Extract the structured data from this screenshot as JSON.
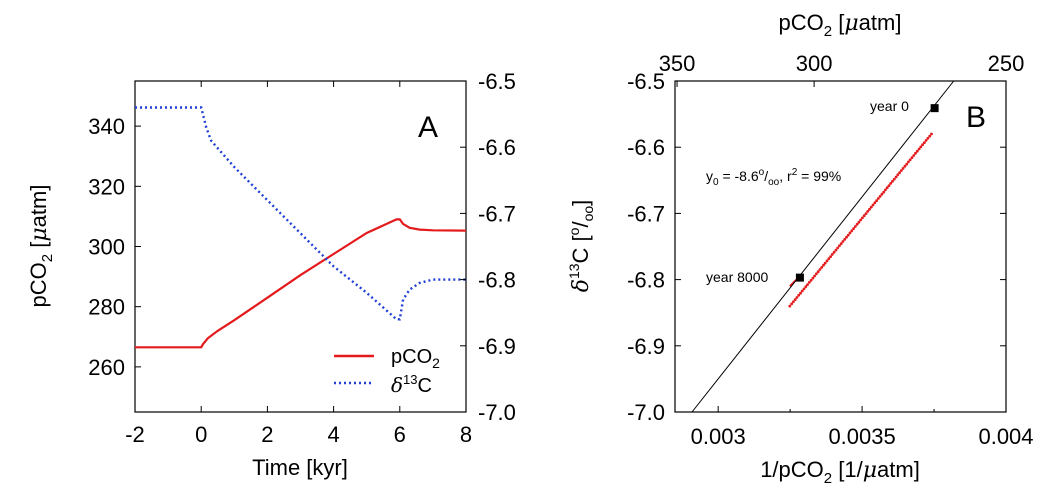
{
  "chart_data": [
    {
      "type": "line",
      "panel_label": "A",
      "xlabel": "Time [kyr]",
      "ylabel_left": "pCO2 [μatm]",
      "ylabel_right": "",
      "xlim": [
        -2,
        8
      ],
      "ylim_left": [
        245,
        355
      ],
      "ylim_right": [
        -7.0,
        -6.5
      ],
      "x_ticks": [
        "-2",
        "0",
        "2",
        "4",
        "6",
        "8"
      ],
      "y_ticks_left": [
        "260",
        "280",
        "300",
        "320",
        "340"
      ],
      "y_ticks_right": [
        "-7.0",
        "-6.9",
        "-6.8",
        "-6.7",
        "-6.6",
        "-6.5"
      ],
      "legend_position": "bottom-right",
      "series": [
        {
          "name": "pCO2",
          "axis": "left",
          "color": "#e41a1c",
          "style": "solid",
          "x": [
            -2,
            0,
            0.05,
            0.2,
            0.5,
            1,
            2,
            3,
            4,
            5,
            5.9,
            6.0,
            6.1,
            6.3,
            6.6,
            7,
            8
          ],
          "y": [
            266.5,
            266.5,
            267.5,
            269.5,
            272,
            275.5,
            283,
            290.5,
            297.5,
            304.5,
            309,
            309,
            307.5,
            306.2,
            305.6,
            305.4,
            305.3
          ]
        },
        {
          "name": "δ13C",
          "axis": "right",
          "color": "#1f3fd6",
          "style": "dotted",
          "x": [
            -2,
            0,
            0.05,
            0.15,
            0.3,
            1,
            2,
            3,
            4,
            5,
            5.9,
            6.0,
            6.1,
            6.3,
            6.6,
            7,
            8
          ],
          "y": [
            -6.54,
            -6.54,
            -6.55,
            -6.57,
            -6.59,
            -6.63,
            -6.68,
            -6.73,
            -6.78,
            -6.82,
            -6.86,
            -6.86,
            -6.83,
            -6.815,
            -6.805,
            -6.8,
            -6.8
          ]
        }
      ]
    },
    {
      "type": "scatter",
      "panel_label": "B",
      "xlabel": "1/pCO2 [1/μatm]",
      "xlabel_top": "pCO2 [μatm]",
      "ylabel": "δ13C [o/oo]",
      "xlim": [
        0.00285,
        0.004
      ],
      "ylim": [
        -7.0,
        -6.5
      ],
      "x_ticks": [
        "0.003",
        "0.0035",
        "0.004"
      ],
      "x_tick_values": [
        0.003,
        0.0035,
        0.004
      ],
      "x_ticks_top": [
        "350",
        "300",
        "250"
      ],
      "x_ticks_top_values": [
        350,
        300,
        250
      ],
      "y_ticks": [
        "-7.0",
        "-6.9",
        "-6.8",
        "-6.7",
        "-6.6",
        "-6.5"
      ],
      "fit_line": {
        "intercept": -8.6,
        "slope": 550
      },
      "annotations": {
        "year0": "year 0",
        "year8000": "year 8000",
        "fit_stats": "y0 = -8.6o/oo, r2 = 99%"
      },
      "markers": [
        {
          "label": "year 0",
          "x": 0.003752,
          "y": -6.541
        },
        {
          "label": "year 8000",
          "x": 0.003284,
          "y": -6.797
        }
      ],
      "series": [
        {
          "color": "#e41a1c",
          "style": "dots",
          "x_range": [
            0.003249,
            0.003741
          ],
          "y_range": [
            -6.84,
            -6.58
          ]
        }
      ],
      "ticks_label": "δ13C",
      "colors": {
        "points": "#e41a1c",
        "fit": "#000000",
        "marker": "#000000"
      }
    }
  ]
}
